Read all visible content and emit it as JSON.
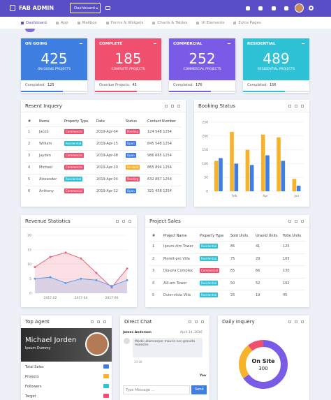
{
  "navbar": {
    "brand": "FAB ADMIN",
    "dropdown": "Dashboard"
  },
  "menu": [
    "Dashboard",
    "App",
    "Mailbox",
    "Forms & Widgets",
    "Charts & Tables",
    "UI Elements",
    "Extra Pages"
  ],
  "stats": [
    {
      "title": "ON GOING",
      "value": 425,
      "subtitle": "ON GOING PROJECTS",
      "footer": "Completed:",
      "footer_value": 125,
      "color": "#3f7fe2"
    },
    {
      "title": "COMPLETE",
      "value": 185,
      "subtitle": "COMPLETE PROJECTS",
      "footer": "Overdue Projects:",
      "footer_value": 45,
      "color": "#f0506e"
    },
    {
      "title": "COMMERCIAL",
      "value": 252,
      "subtitle": "COMMERCIAL PROJECTS",
      "footer": "Completed:",
      "footer_value": 176,
      "color": "#7a5be6"
    },
    {
      "title": "RESIDENTIAL",
      "value": 489,
      "subtitle": "RESIDENTIAL PROJECTS",
      "footer": "Completed:",
      "footer_value": 156,
      "color": "#2fc1d6"
    }
  ],
  "inquiry": {
    "title": "Resent Inquery",
    "headers": [
      "#",
      "Name",
      "Property Type",
      "Date",
      "Status",
      "Contact Number"
    ],
    "rows": [
      [
        1,
        "Jacob",
        "Commercial",
        "2019-Apr-04",
        "Pending",
        "124 548 1254"
      ],
      [
        2,
        "William",
        "Residential",
        "2019-Apr-15",
        "Open",
        "845 548 1254"
      ],
      [
        3,
        "Jayden",
        "Commercial",
        "2019-Apr-08",
        "Open",
        "986 665 1254"
      ],
      [
        4,
        "Michael",
        "Commercial",
        "2019-Apr-20",
        "On Hold",
        "865 894 1254"
      ],
      [
        5,
        "Alexander",
        "Residential",
        "2019-Apr-04",
        "Pending",
        "632 867 1254"
      ],
      [
        6,
        "Anthony",
        "Commercial",
        "2019-Apr-12",
        "Open",
        "321 458 1254"
      ]
    ],
    "badge_colors": {
      "Commercial": "#f0506e",
      "Residential": "#2fc1d6",
      "Pending": "#f0506e",
      "Open": "#3f7fe2",
      "On Hold": "#f7b22b"
    }
  },
  "booking": {
    "title": "Booking Status",
    "type": "bar",
    "categories": [
      null,
      "Feb",
      null,
      "Apr",
      null,
      "Jun"
    ],
    "series": [
      {
        "color": "#f7b22b",
        "values": [
          110,
          215,
          150,
          205,
          195,
          45
        ]
      },
      {
        "color": "#3f7fe2",
        "values": [
          120,
          100,
          95,
          130,
          110,
          20
        ]
      }
    ],
    "ylim": [
      0,
      250
    ],
    "yticks": [
      0,
      50,
      100,
      150,
      200,
      250
    ],
    "grid": true
  },
  "revenue": {
    "title": "Revenue Statistics",
    "type": "line",
    "x": [
      null,
      "2017-02",
      null,
      "2017-04",
      null,
      "2017-06",
      null
    ],
    "series": [
      {
        "color": "#e8637a",
        "values": [
          9,
          12.5,
          14,
          12,
          7,
          2,
          8.5
        ]
      },
      {
        "color": "#5a9be8",
        "values": [
          5,
          5.5,
          3.5,
          5,
          4.5,
          2.5,
          4.5
        ]
      }
    ],
    "ylim": [
      0,
      20
    ],
    "yticks": [
      0,
      5,
      10,
      15,
      20
    ],
    "grid": true
  },
  "sales": {
    "title": "Project Sales",
    "headers": [
      "#",
      "Project Name",
      "Property Type",
      "Sold Units",
      "Unsold Units",
      "Totle Units"
    ],
    "rows": [
      [
        1,
        "Ipsum-dim Tower",
        "Residential",
        85,
        41,
        125
      ],
      [
        2,
        "Morelt-pro Villa",
        "Residential",
        75,
        29,
        105
      ],
      [
        3,
        "Dia-pra Complex",
        "Commercial",
        65,
        66,
        130
      ],
      [
        4,
        "Alli-am Tower",
        "Residential",
        50,
        52,
        102
      ],
      [
        5,
        "Duler-vista Villa",
        "Residential",
        25,
        19,
        45
      ]
    ]
  },
  "agent": {
    "title": "Top Agent",
    "name": "Michael Jorden",
    "role": "Ipsum Dummy",
    "items": [
      "Total Sales",
      "Projects",
      "Followers",
      "Target"
    ]
  },
  "chat": {
    "title": "Direct Chat",
    "sender": "James Anderson",
    "date": "April 14, 2016",
    "message": "Morbi ullamcorper mauris nec gravida molestie.",
    "time": "20:08",
    "reply": "You",
    "placeholder": "Type Message ...",
    "send": "Send"
  },
  "daily": {
    "title": "Daily Inquery",
    "type": "pie",
    "center_label": "On Site",
    "segments": [
      {
        "value": 300,
        "color": "#7a5be6"
      },
      {
        "value": 110,
        "color": "#f7b22b"
      },
      {
        "value": 50,
        "color": "#f0506e"
      }
    ]
  }
}
